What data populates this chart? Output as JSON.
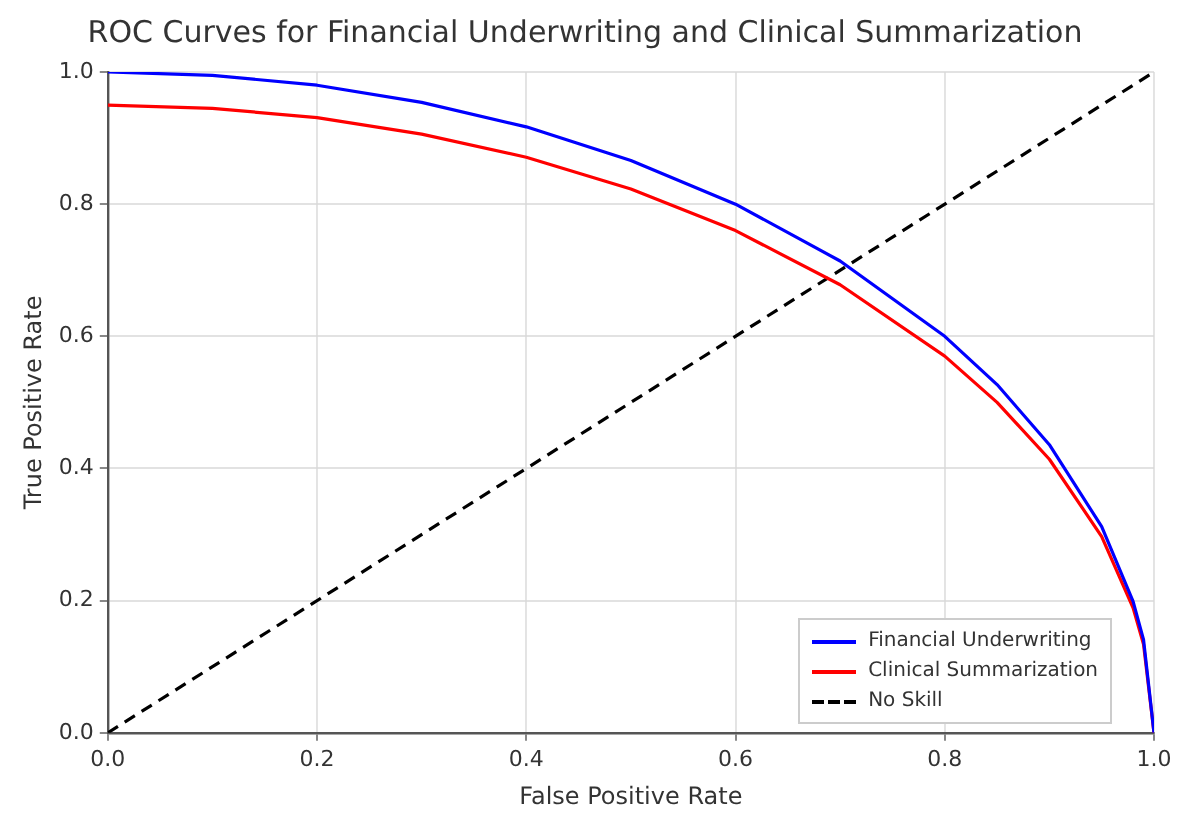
{
  "chart_data": {
    "type": "line",
    "title": "ROC Curves for Financial Underwriting and Clinical Summarization",
    "xlabel": "False Positive Rate",
    "ylabel": "True Positive Rate",
    "xlim": [
      0,
      1
    ],
    "ylim": [
      0,
      1
    ],
    "xticks": [
      {
        "value": 0,
        "label": "0.0"
      },
      0.2,
      0.4,
      0.6,
      0.8,
      {
        "value": 1,
        "label": "1.0"
      }
    ],
    "yticks": [
      {
        "value": 0,
        "label": "0.0"
      },
      0.2,
      0.4,
      0.6,
      0.8,
      {
        "value": 1,
        "label": "1.0"
      }
    ],
    "grid": true,
    "legend": "bottom right",
    "marker": "none",
    "series": [
      {
        "name": "Financial Underwriting",
        "color": "#0000ff",
        "x": [
          0,
          0.1,
          0.2,
          0.3,
          0.4,
          0.5,
          0.6,
          0.7,
          0.8,
          0.85,
          0.9,
          0.95,
          0.98,
          0.99,
          1
        ],
        "values": [
          1,
          0.995,
          0.98,
          0.954,
          0.917,
          0.866,
          0.8,
          0.714,
          0.6,
          0.527,
          0.436,
          0.312,
          0.199,
          0.141,
          0
        ]
      },
      {
        "name": "Clinical Summarization",
        "color": "#ff0000",
        "x": [
          0,
          0.1,
          0.2,
          0.3,
          0.4,
          0.5,
          0.6,
          0.7,
          0.8,
          0.85,
          0.9,
          0.95,
          0.98,
          0.99,
          1
        ],
        "values": [
          0.95,
          0.945,
          0.931,
          0.906,
          0.871,
          0.823,
          0.76,
          0.678,
          0.57,
          0.5,
          0.414,
          0.297,
          0.189,
          0.134,
          0
        ]
      },
      {
        "name": "No Skill",
        "color": "#000000",
        "line_style": "dashed",
        "x": [
          0,
          1
        ],
        "values": [
          0,
          1
        ]
      }
    ]
  }
}
